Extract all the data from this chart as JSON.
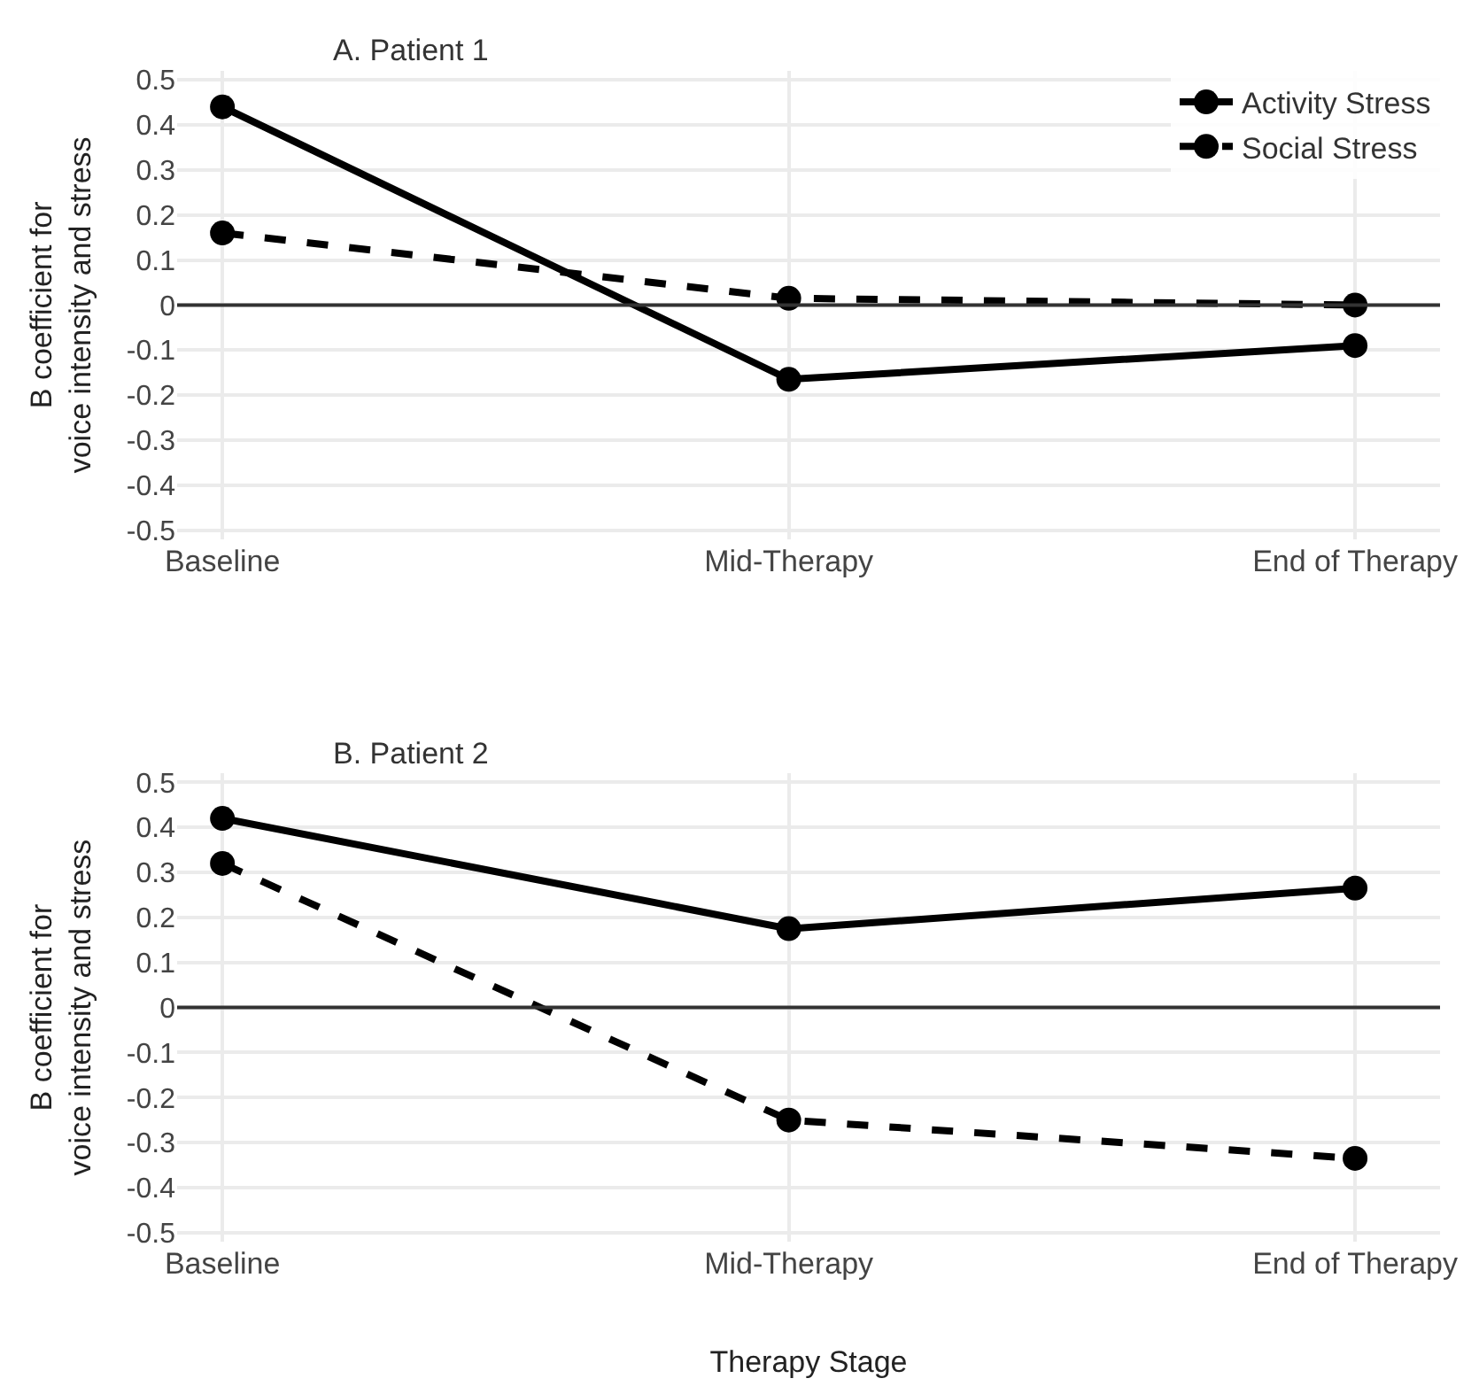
{
  "chart_data": [
    {
      "type": "line",
      "title": "A. Patient 1",
      "ylabel": "B coefficient for\nvoice intensity and stress",
      "categories": [
        "Baseline",
        "Mid-Therapy",
        "End of Therapy"
      ],
      "series": [
        {
          "name": "Activity Stress",
          "color": "#000000",
          "line_style": "solid",
          "values": [
            0.44,
            -0.165,
            -0.09
          ]
        },
        {
          "name": "Social Stress",
          "color": "#000000",
          "line_style": "dashed",
          "values": [
            0.16,
            0.015,
            0.0
          ]
        }
      ],
      "ylim": [
        -0.52,
        0.52
      ],
      "yticks": [
        -0.5,
        -0.4,
        -0.3,
        -0.2,
        -0.1,
        0,
        0.1,
        0.2,
        0.3,
        0.4,
        0.5
      ],
      "grid": true,
      "legend": "top right",
      "marker": "circle",
      "ref_lines": [
        {
          "axis": "y",
          "value": 0,
          "color": "#333333"
        }
      ]
    },
    {
      "type": "line",
      "title": "B. Patient 2",
      "xlabel": "Therapy Stage",
      "ylabel": "B coefficient for\nvoice intensity and stress",
      "categories": [
        "Baseline",
        "Mid-Therapy",
        "End of Therapy"
      ],
      "series": [
        {
          "color": "#000000",
          "line_style": "solid",
          "values": [
            0.42,
            0.175,
            0.265
          ]
        },
        {
          "color": "#000000",
          "line_style": "dashed",
          "values": [
            0.32,
            -0.25,
            -0.335
          ]
        }
      ],
      "ylim": [
        -0.52,
        0.52
      ],
      "yticks": [
        -0.5,
        -0.4,
        -0.3,
        -0.2,
        -0.1,
        0,
        0.1,
        0.2,
        0.3,
        0.4,
        0.5
      ],
      "grid": true,
      "marker": "circle",
      "ref_lines": [
        {
          "axis": "y",
          "value": 0,
          "color": "#333333"
        }
      ]
    }
  ]
}
